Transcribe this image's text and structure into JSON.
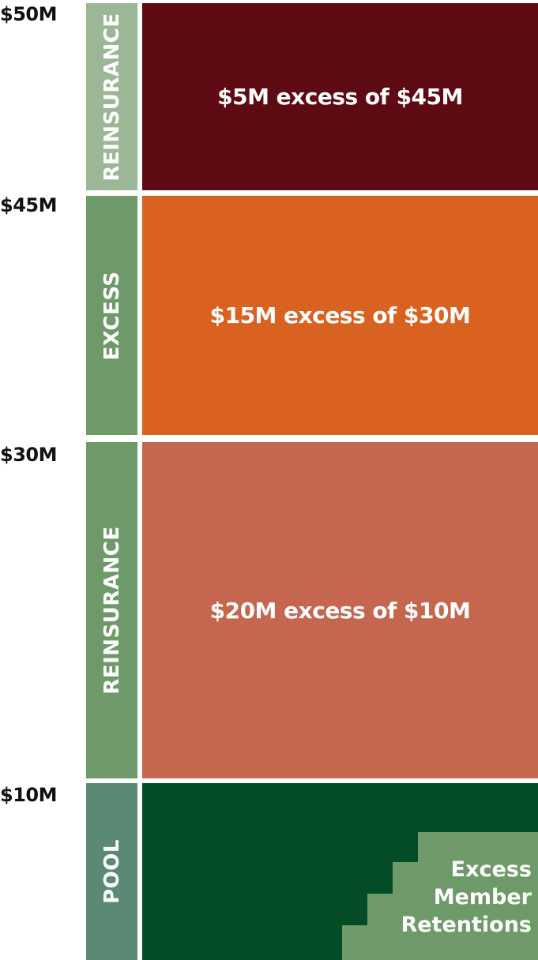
{
  "colors": {
    "reinsurance_top_bar": "#9bb796",
    "excess_bar": "#6d9a68",
    "reinsurance_mid_bar": "#6d9a68",
    "pool_bar": "#5a8a74",
    "layer_top": "#5d0a12",
    "layer_excess": "#d96221",
    "layer_mid": "#c5664f",
    "layer_pool": "#034c25",
    "retention_steps": "#6d9a68"
  },
  "axis": {
    "m50": "$50M",
    "m45": "$45M",
    "m30": "$30M",
    "m10": "$10M"
  },
  "bands": {
    "reinsurance_top": "REINSURANCE",
    "excess": "EXCESS",
    "reinsurance_mid": "REINSURANCE",
    "pool": "POOL"
  },
  "layers": {
    "top": "$5M excess of $45M",
    "excess": "$15M excess of $30M",
    "mid": "$20M excess of $10M"
  },
  "pool": {
    "retention_line1": "Excess",
    "retention_line2": "Member",
    "retention_line3": "Retentions"
  }
}
